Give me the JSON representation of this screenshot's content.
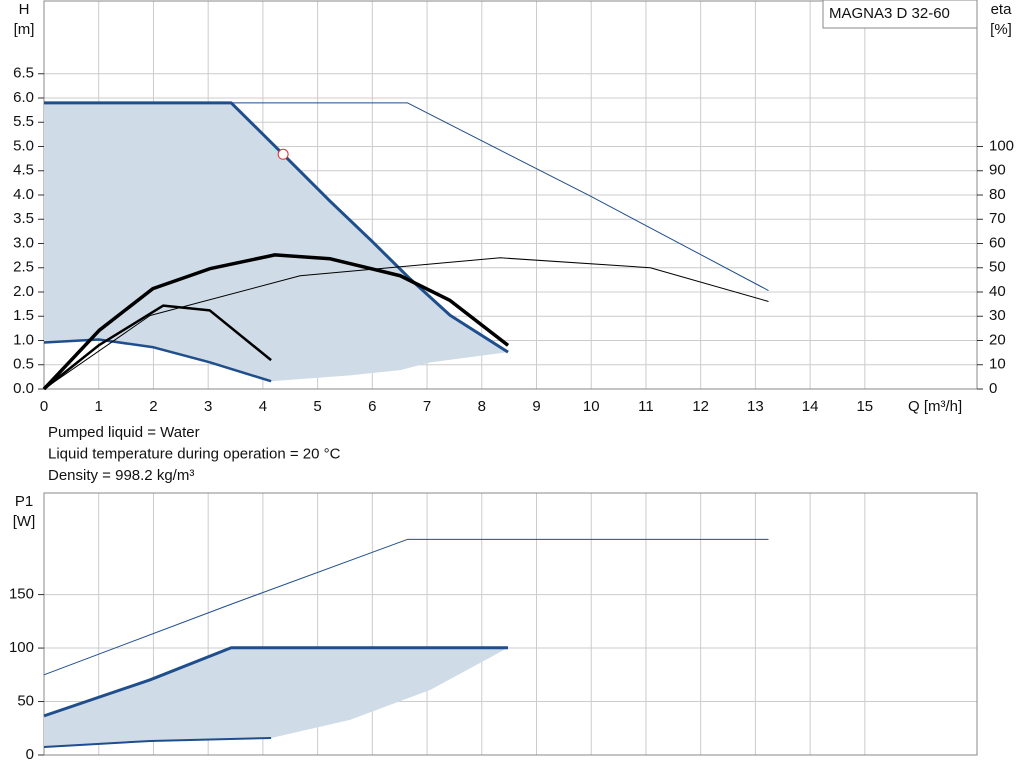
{
  "chart_data": [
    {
      "type": "line",
      "title": "MAGNA3 D 32-60",
      "y_label": [
        "H",
        "[m]"
      ],
      "y2_label": [
        "eta",
        "[%]"
      ],
      "x_label": "Q [m³/h]",
      "notes": [
        "Pumped liquid = Water",
        "Liquid temperature during operation = 20 °C",
        "Density = 998.2 kg/m³"
      ],
      "xlim": [
        0,
        17.05
      ],
      "xticks": [
        0,
        1,
        2,
        3,
        4,
        5,
        6,
        7,
        8,
        9,
        10,
        11,
        12,
        13,
        14,
        15
      ],
      "ylim": [
        0,
        8
      ],
      "yticks": [
        {
          "value": 0,
          "label": "0.0"
        },
        {
          "value": 0.5,
          "label": "0.5"
        },
        {
          "value": 1,
          "label": "1.0"
        },
        {
          "value": 1.5,
          "label": "1.5"
        },
        {
          "value": 2,
          "label": "2.0"
        },
        {
          "value": 2.5,
          "label": "2.5"
        },
        {
          "value": 3,
          "label": "3.0"
        },
        {
          "value": 3.5,
          "label": "3.5"
        },
        {
          "value": 4,
          "label": "4.0"
        },
        {
          "value": 4.5,
          "label": "4.5"
        },
        {
          "value": 5,
          "label": "5.0"
        },
        {
          "value": 5.5,
          "label": "5.5"
        },
        {
          "value": 6,
          "label": "6.0"
        },
        {
          "value": 6.5,
          "label": "6.5"
        }
      ],
      "y2lim": [
        0,
        160
      ],
      "y2ticks": [
        0,
        10,
        20,
        30,
        40,
        50,
        60,
        70,
        80,
        90,
        100
      ],
      "grid": true,
      "series": [
        {
          "kind": "area",
          "color": "#cfdbe6",
          "x": [
            0,
            3.42,
            4.37,
            5.23,
            5.99,
            6.69,
            7.42,
            8.48,
            7.06,
            6.51,
            5.59,
            4.15,
            3.03,
            2,
            1,
            0
          ],
          "values": [
            5.9,
            5.9,
            4.84,
            3.87,
            3.05,
            2.27,
            1.52,
            0.76,
            0.55,
            0.39,
            0.28,
            0.16,
            0.55,
            0.86,
            1.02,
            0.96
          ]
        },
        {
          "kind": "line",
          "color": "#1f4e8c",
          "width": 1,
          "x": [
            0,
            6.64,
            9.98,
            13.24
          ],
          "values": [
            5.9,
            5.9,
            3.98,
            2.03
          ]
        },
        {
          "kind": "line",
          "color": "#1f4e8c",
          "width": 3,
          "x": [
            0,
            3.42,
            4.37,
            5.23,
            5.99,
            6.69,
            7.42,
            8.48
          ],
          "values": [
            5.9,
            5.9,
            4.84,
            3.87,
            3.05,
            2.27,
            1.52,
            0.76
          ]
        },
        {
          "kind": "line",
          "color": "#1f4e8c",
          "width": 2.5,
          "x": [
            0,
            1,
            2,
            3.03,
            4.15
          ],
          "values": [
            0.96,
            1.02,
            0.86,
            0.55,
            0.16
          ]
        },
        {
          "kind": "line",
          "color": "#000000",
          "width": 1,
          "axis": "y2",
          "x": [
            0,
            1.94,
            4.68,
            8.34,
            11.08,
            13.24
          ],
          "values": [
            0,
            30.3,
            46.7,
            54.1,
            50,
            36.1
          ]
        },
        {
          "kind": "line",
          "color": "#000000",
          "width": 3.5,
          "axis": "y2",
          "x": [
            0,
            1.01,
            1.99,
            3.03,
            4.22,
            5.23,
            6.51,
            7.42,
            8.48
          ],
          "values": [
            0,
            24.2,
            41.4,
            49.6,
            55.3,
            53.7,
            46.7,
            36.5,
            18
          ]
        },
        {
          "kind": "line",
          "color": "#000000",
          "width": 2.5,
          "axis": "y2",
          "x": [
            0,
            1,
            2.18,
            3.03,
            4.15
          ],
          "values": [
            0,
            18,
            34.4,
            32.4,
            11.9
          ]
        },
        {
          "kind": "marker",
          "color": "#e03030",
          "x": [
            4.37
          ],
          "values": [
            4.84
          ]
        }
      ]
    },
    {
      "type": "line",
      "y_label": [
        "P1",
        "[W]"
      ],
      "xlim": [
        0,
        17.05
      ],
      "xticks": [
        0,
        1,
        2,
        3,
        4,
        5,
        6,
        7,
        8,
        9,
        10,
        11,
        12,
        13,
        14,
        15
      ],
      "ylim": [
        0,
        245
      ],
      "yticks": [
        0,
        50,
        100,
        150
      ],
      "grid": true,
      "series": [
        {
          "kind": "area",
          "color": "#cfdbe6",
          "x": [
            0,
            1.94,
            3.42,
            8.48,
            7.06,
            5.59,
            4.15,
            1.94,
            0
          ],
          "values": [
            36.6,
            70.3,
            100.3,
            100.3,
            60.9,
            32.8,
            15.9,
            13.1,
            7.5
          ]
        },
        {
          "kind": "line",
          "color": "#1f4e8c",
          "width": 1,
          "x": [
            0,
            3.4,
            6.64,
            13.24
          ],
          "values": [
            75,
            140.6,
            201.6,
            201.6
          ]
        },
        {
          "kind": "line",
          "color": "#1f4e8c",
          "width": 3,
          "x": [
            0,
            1.94,
            3.42,
            8.48
          ],
          "values": [
            36.6,
            70.3,
            100.3,
            100.3
          ]
        },
        {
          "kind": "line",
          "color": "#1f4e8c",
          "width": 2,
          "x": [
            0,
            1.94,
            4.15
          ],
          "values": [
            7.5,
            13.1,
            15.9
          ]
        }
      ]
    }
  ]
}
